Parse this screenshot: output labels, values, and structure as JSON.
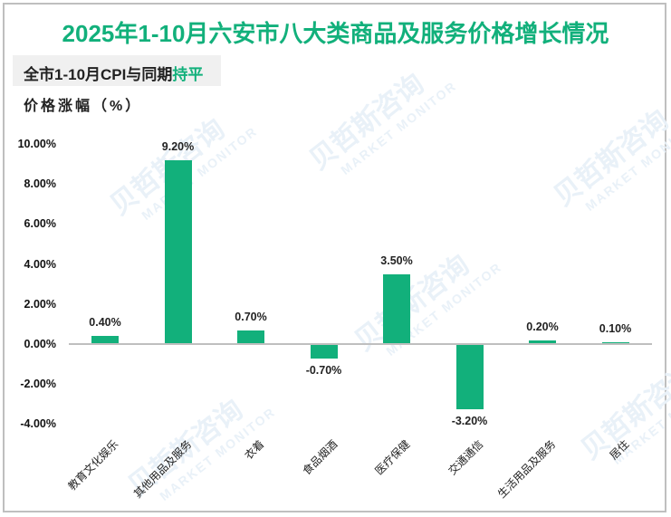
{
  "header": {
    "title": "2025年1-10月六安市八大类商品及服务价格增长情况",
    "subtitle_prefix": "全市1-10月CPI与同期",
    "subtitle_highlight": "持平",
    "ylabel": "价格涨幅（%）"
  },
  "watermark": {
    "cn": "贝哲斯咨询",
    "en": "MARKET MONITOR"
  },
  "colors": {
    "accent": "#12b07b",
    "bar": "#12b07b",
    "axis": "#bfbfbf",
    "subtitle_bg": "#f0f0f0"
  },
  "chart_data": {
    "type": "bar",
    "title": "2025年1-10月六安市八大类商品及服务价格增长情况",
    "subtitle": "全市1-10月CPI与同期持平",
    "xlabel": "",
    "ylabel": "价格涨幅（%）",
    "categories": [
      "教育文化娱乐",
      "其他用品及服务",
      "衣着",
      "食品烟酒",
      "医疗保健",
      "交通通信",
      "生活用品及服务",
      "居住"
    ],
    "values": [
      0.4,
      9.2,
      0.7,
      -0.7,
      3.5,
      -3.2,
      0.2,
      0.1
    ],
    "value_labels": [
      "0.40%",
      "9.20%",
      "0.70%",
      "-0.70%",
      "3.50%",
      "-3.20%",
      "0.20%",
      "0.10%"
    ],
    "yticks": [
      "10.00%",
      "8.00%",
      "6.00%",
      "4.00%",
      "2.00%",
      "0.00%",
      "-2.00%",
      "-4.00%"
    ],
    "ytick_values": [
      10,
      8,
      6,
      4,
      2,
      0,
      -2,
      -4
    ],
    "ylim": [
      -4,
      10
    ],
    "grid": false,
    "legend": null
  }
}
